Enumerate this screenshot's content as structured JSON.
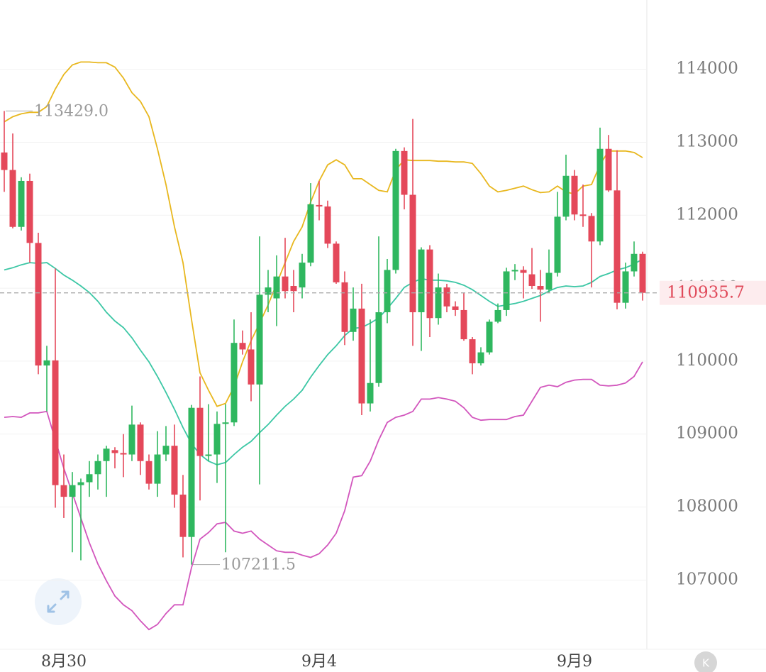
{
  "chart_data": {
    "type": "candlestick",
    "x": [
      null,
      null,
      null,
      null,
      null,
      null,
      null,
      "8月30",
      null,
      null,
      null,
      null,
      null,
      null,
      null,
      null,
      null,
      null,
      null,
      null,
      null,
      null,
      null,
      null,
      null,
      null,
      null,
      null,
      null,
      null,
      null,
      null,
      null,
      null,
      null,
      null,
      null,
      "9月4",
      null,
      null,
      null,
      null,
      null,
      null,
      null,
      null,
      null,
      null,
      null,
      null,
      null,
      null,
      null,
      null,
      null,
      null,
      null,
      null,
      null,
      null,
      null,
      null,
      null,
      null,
      null,
      null,
      null,
      "9月9",
      null,
      null,
      null,
      null,
      null,
      null,
      null,
      null
    ],
    "open": [
      112860,
      112620,
      111840,
      112470,
      111620,
      109940,
      110010,
      108300,
      108140,
      108300,
      108340,
      108450,
      108630,
      108780,
      108740,
      108720,
      109130,
      108630,
      108320,
      108720,
      108840,
      108170,
      107590,
      109360,
      108700,
      108720,
      109140,
      109160,
      110250,
      110160,
      109680,
      110910,
      110860,
      111160,
      111030,
      111010,
      111350,
      112140,
      112120,
      111610,
      111080,
      110400,
      110720,
      109420,
      109700,
      110670,
      111250,
      112880,
      112280,
      110670,
      111530,
      110590,
      111010,
      110750,
      110700,
      110300,
      109970,
      110120,
      110540,
      110700,
      111230,
      111250,
      111190,
      111030,
      110980,
      111210,
      111980,
      112540,
      112010,
      111990,
      111640,
      112910,
      112340,
      110800,
      111230,
      111470
    ],
    "high": [
      113429,
      113120,
      112520,
      112570,
      111760,
      110210,
      111270,
      108720,
      108480,
      108390,
      108630,
      108720,
      108840,
      108820,
      109000,
      109390,
      109160,
      108720,
      109040,
      109110,
      109130,
      108440,
      109400,
      109790,
      109410,
      109310,
      109410,
      110570,
      110420,
      110670,
      111710,
      111250,
      111450,
      111690,
      111250,
      111470,
      112440,
      112470,
      112200,
      111640,
      111230,
      111010,
      111060,
      110570,
      111710,
      111400,
      112910,
      112930,
      113320,
      111560,
      111590,
      111200,
      111060,
      110820,
      110940,
      110330,
      110190,
      110570,
      110790,
      111280,
      111330,
      111300,
      111550,
      111250,
      111530,
      112320,
      112830,
      112620,
      112420,
      112030,
      113200,
      113100,
      112890,
      111350,
      111640,
      111500
    ],
    "low": [
      112320,
      111820,
      111790,
      111350,
      109820,
      109310,
      107990,
      107850,
      107380,
      107270,
      108140,
      108240,
      108140,
      108530,
      108410,
      108630,
      108440,
      108240,
      108140,
      108630,
      107990,
      107310,
      107211.5,
      108090,
      108630,
      108330,
      107380,
      109110,
      110090,
      109450,
      108310,
      110670,
      110480,
      110860,
      110670,
      110860,
      111300,
      111930,
      111550,
      111060,
      110220,
      110280,
      109260,
      109310,
      109650,
      110520,
      111200,
      112080,
      110210,
      110140,
      110330,
      110500,
      110670,
      110620,
      110280,
      109820,
      109940,
      110090,
      110520,
      110620,
      111110,
      110860,
      110990,
      110540,
      110940,
      111160,
      111930,
      111930,
      111840,
      111010,
      111590,
      112320,
      110710,
      110720,
      111160,
      110830
    ],
    "close": [
      112620,
      111840,
      112470,
      111620,
      109940,
      110010,
      108300,
      108140,
      108300,
      108340,
      108450,
      108630,
      108800,
      108740,
      108720,
      109130,
      108630,
      108320,
      108720,
      108840,
      108170,
      107590,
      109360,
      108700,
      108720,
      109140,
      109160,
      110250,
      110160,
      109680,
      110910,
      111010,
      111160,
      110960,
      110960,
      111350,
      112150,
      112120,
      111610,
      111080,
      110400,
      110720,
      109420,
      109700,
      110670,
      111250,
      112880,
      112280,
      110670,
      111530,
      110590,
      111010,
      110750,
      110700,
      110300,
      109970,
      110120,
      110540,
      110700,
      111230,
      111250,
      111210,
      111030,
      110980,
      111210,
      111980,
      112540,
      112010,
      111990,
      111640,
      112910,
      112340,
      110800,
      111230,
      111470,
      110935.7
    ],
    "up_color": "#2fb75f",
    "down_color": "#e4485a",
    "bands": {
      "upper": {
        "color": "#e8b71e",
        "values": [
          113280,
          113350,
          113390,
          113410,
          113410,
          113490,
          113730,
          113930,
          114060,
          114100,
          114100,
          114090,
          114090,
          114030,
          113880,
          113680,
          113560,
          113350,
          112910,
          112420,
          111840,
          111350,
          110570,
          109840,
          109600,
          109380,
          109420,
          109650,
          109990,
          110280,
          110520,
          110770,
          111060,
          111350,
          111640,
          111840,
          112180,
          112470,
          112690,
          112760,
          112690,
          112500,
          112500,
          112420,
          112340,
          112320,
          112620,
          112760,
          112750,
          112750,
          112750,
          112740,
          112740,
          112730,
          112730,
          112710,
          112570,
          112400,
          112320,
          112340,
          112370,
          112400,
          112350,
          112310,
          112320,
          112400,
          112320,
          112290,
          112400,
          112420,
          112690,
          112880,
          112880,
          112880,
          112860,
          112790
        ]
      },
      "middle": {
        "color": "#3cc7a5",
        "values": [
          111250,
          111280,
          111320,
          111350,
          111340,
          111350,
          111270,
          111180,
          111110,
          111030,
          110940,
          110820,
          110670,
          110550,
          110460,
          110320,
          110150,
          109990,
          109790,
          109570,
          109340,
          109090,
          108870,
          108720,
          108630,
          108580,
          108610,
          108720,
          108820,
          108900,
          109020,
          109130,
          109260,
          109380,
          109480,
          109600,
          109780,
          109940,
          110090,
          110210,
          110350,
          110450,
          110460,
          110520,
          110590,
          110720,
          110860,
          111010,
          111080,
          111130,
          111110,
          111110,
          111100,
          111080,
          111040,
          110980,
          110900,
          110820,
          110750,
          110770,
          110790,
          110820,
          110860,
          110900,
          110960,
          111010,
          111030,
          111020,
          111030,
          111080,
          111160,
          111200,
          111250,
          111280,
          111330,
          111400
        ]
      },
      "lower": {
        "color": "#d256bd",
        "values": [
          109230,
          109240,
          109230,
          109290,
          109290,
          109310,
          108920,
          108530,
          108190,
          107850,
          107510,
          107220,
          106990,
          106780,
          106660,
          106580,
          106440,
          106320,
          106390,
          106540,
          106660,
          106660,
          107170,
          107560,
          107650,
          107770,
          107790,
          107670,
          107640,
          107670,
          107560,
          107480,
          107400,
          107380,
          107380,
          107340,
          107310,
          107360,
          107480,
          107640,
          107950,
          108410,
          108430,
          108630,
          108920,
          109160,
          109230,
          109260,
          109310,
          109480,
          109480,
          109500,
          109480,
          109450,
          109360,
          109230,
          109190,
          109200,
          109200,
          109200,
          109240,
          109260,
          109450,
          109640,
          109670,
          109650,
          109710,
          109740,
          109750,
          109750,
          109670,
          109660,
          109670,
          109700,
          109790,
          109990
        ]
      }
    },
    "ylim": [
      106050,
      114950
    ],
    "yticks": [
      107000,
      108000,
      109000,
      110000,
      111000,
      112000,
      113000,
      114000
    ],
    "grid": true,
    "annotations": [
      {
        "value": 113429,
        "label": "113429.0"
      },
      {
        "value": 107211.5,
        "label": "107211.5"
      }
    ],
    "last_price": 110935.7,
    "last_price_color": "#e04a5a"
  },
  "toolbar": {
    "k_button": "K"
  }
}
